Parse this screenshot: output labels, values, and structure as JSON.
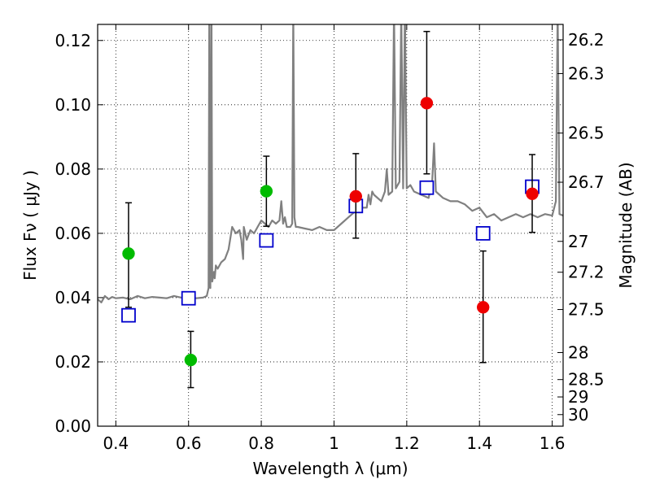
{
  "chart_data": {
    "type": "scatter",
    "title": "",
    "xlabel": "Wavelength  λ (μm)",
    "ylabel": "Flux  Fν  ( μJy )",
    "ylabel_right": "Magnitude (AB)",
    "xlim": [
      0.35,
      1.63
    ],
    "ylim": [
      0.0,
      0.125
    ],
    "x_ticks": [
      0.4,
      0.6,
      0.8,
      1.0,
      1.2,
      1.4,
      1.6
    ],
    "x_tick_labels": [
      "0.4",
      "0.6",
      "0.8",
      "1",
      "1.2",
      "1.4",
      "1.6"
    ],
    "y_ticks": [
      0.0,
      0.02,
      0.04,
      0.06,
      0.08,
      0.1,
      0.12
    ],
    "y_tick_labels": [
      "0.00",
      "0.02",
      "0.04",
      "0.06",
      "0.08",
      "0.10",
      "0.12"
    ],
    "right_ticks": [
      {
        "label": "26.2",
        "flux": 0.1202
      },
      {
        "label": "26.3",
        "flux": 0.1097
      },
      {
        "label": "26.5",
        "flux": 0.0912
      },
      {
        "label": "26.7",
        "flux": 0.0759
      },
      {
        "label": "27",
        "flux": 0.0575
      },
      {
        "label": "27.2",
        "flux": 0.0479
      },
      {
        "label": "27.5",
        "flux": 0.0363
      },
      {
        "label": "28",
        "flux": 0.0229
      },
      {
        "label": "28.5",
        "flux": 0.0145
      },
      {
        "label": "29",
        "flux": 0.0091
      },
      {
        "label": "30",
        "flux": 0.0036
      }
    ],
    "grid": true,
    "colors": {
      "green": "#00bb00",
      "red": "#ee0000",
      "blue": "#0000cc",
      "spectrum": "#808080",
      "errorbar": "#000000"
    },
    "series": [
      {
        "kind": "points_with_errors",
        "color": "#00bb00",
        "points": [
          {
            "x": 0.435,
            "y": 0.0537,
            "ylo": 0.037,
            "yhi": 0.0695
          },
          {
            "x": 0.606,
            "y": 0.0206,
            "ylo": 0.012,
            "yhi": 0.0295
          },
          {
            "x": 0.814,
            "y": 0.0731,
            "ylo": 0.0622,
            "yhi": 0.084
          }
        ]
      },
      {
        "kind": "points_with_errors",
        "color": "#ee0000",
        "points": [
          {
            "x": 1.06,
            "y": 0.0715,
            "ylo": 0.0585,
            "yhi": 0.0848
          },
          {
            "x": 1.255,
            "y": 0.1005,
            "ylo": 0.0785,
            "yhi": 0.1228
          },
          {
            "x": 1.41,
            "y": 0.037,
            "ylo": 0.0198,
            "yhi": 0.0545
          },
          {
            "x": 1.545,
            "y": 0.0723,
            "ylo": 0.0603,
            "yhi": 0.0845
          }
        ]
      },
      {
        "kind": "model_squares",
        "color": "#0000cc",
        "points": [
          {
            "x": 0.435,
            "y": 0.0345
          },
          {
            "x": 0.6,
            "y": 0.0398
          },
          {
            "x": 0.814,
            "y": 0.0578
          },
          {
            "x": 1.06,
            "y": 0.0685
          },
          {
            "x": 1.255,
            "y": 0.0742
          },
          {
            "x": 1.41,
            "y": 0.06
          },
          {
            "x": 1.545,
            "y": 0.0745
          }
        ]
      },
      {
        "kind": "spectrum",
        "color": "#808080",
        "x": [
          0.35,
          0.36,
          0.37,
          0.38,
          0.39,
          0.4,
          0.42,
          0.44,
          0.46,
          0.48,
          0.5,
          0.52,
          0.54,
          0.56,
          0.58,
          0.6,
          0.62,
          0.64,
          0.65,
          0.655,
          0.657,
          0.66,
          0.663,
          0.665,
          0.67,
          0.672,
          0.675,
          0.68,
          0.69,
          0.7,
          0.71,
          0.72,
          0.73,
          0.74,
          0.745,
          0.75,
          0.752,
          0.76,
          0.77,
          0.78,
          0.79,
          0.8,
          0.81,
          0.82,
          0.83,
          0.84,
          0.85,
          0.855,
          0.86,
          0.865,
          0.87,
          0.88,
          0.885,
          0.888,
          0.891,
          0.895,
          0.9,
          0.92,
          0.94,
          0.96,
          0.98,
          1.0,
          1.02,
          1.04,
          1.06,
          1.08,
          1.09,
          1.095,
          1.1,
          1.105,
          1.11,
          1.13,
          1.14,
          1.145,
          1.15,
          1.16,
          1.165,
          1.17,
          1.18,
          1.185,
          1.19,
          1.195,
          1.2,
          1.21,
          1.22,
          1.24,
          1.26,
          1.27,
          1.275,
          1.28,
          1.29,
          1.3,
          1.32,
          1.34,
          1.36,
          1.38,
          1.4,
          1.42,
          1.44,
          1.46,
          1.48,
          1.5,
          1.52,
          1.54,
          1.56,
          1.58,
          1.6,
          1.61,
          1.615,
          1.62,
          1.63
        ],
        "y": [
          0.0395,
          0.0385,
          0.0405,
          0.0395,
          0.0402,
          0.0398,
          0.04,
          0.0395,
          0.0405,
          0.0398,
          0.0402,
          0.04,
          0.0398,
          0.0405,
          0.04,
          0.0402,
          0.0398,
          0.04,
          0.0405,
          0.043,
          0.13,
          0.043,
          0.13,
          0.045,
          0.048,
          0.046,
          0.05,
          0.049,
          0.051,
          0.052,
          0.055,
          0.062,
          0.06,
          0.061,
          0.058,
          0.052,
          0.062,
          0.058,
          0.061,
          0.06,
          0.062,
          0.064,
          0.063,
          0.062,
          0.064,
          0.063,
          0.064,
          0.07,
          0.063,
          0.065,
          0.062,
          0.062,
          0.063,
          0.13,
          0.065,
          0.062,
          0.062,
          0.0615,
          0.061,
          0.062,
          0.061,
          0.061,
          0.063,
          0.065,
          0.067,
          0.068,
          0.068,
          0.072,
          0.069,
          0.073,
          0.072,
          0.07,
          0.073,
          0.08,
          0.072,
          0.073,
          0.13,
          0.074,
          0.076,
          0.13,
          0.074,
          0.13,
          0.074,
          0.075,
          0.073,
          0.072,
          0.071,
          0.076,
          0.088,
          0.073,
          0.072,
          0.071,
          0.07,
          0.07,
          0.069,
          0.067,
          0.068,
          0.065,
          0.066,
          0.064,
          0.065,
          0.066,
          0.065,
          0.066,
          0.065,
          0.066,
          0.0655,
          0.07,
          0.13,
          0.066,
          0.0655
        ]
      }
    ]
  }
}
